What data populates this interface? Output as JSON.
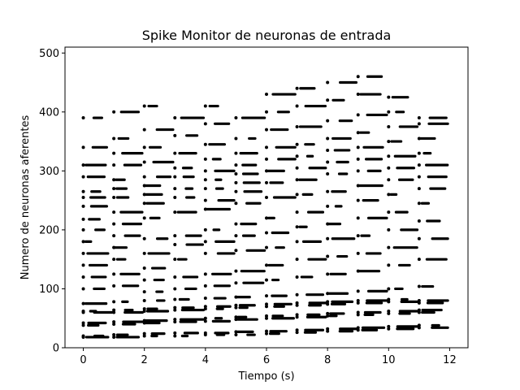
{
  "chart_data": {
    "type": "scatter",
    "title": "Spike Monitor de neuronas de entrada",
    "xlabel": "Tiempo (s)",
    "ylabel": "Numero de neuronas aferentes",
    "xlim": [
      -0.6,
      12.6
    ],
    "ylim": [
      0,
      510
    ],
    "xticks": [
      0,
      2,
      4,
      6,
      8,
      10,
      12
    ],
    "yticks": [
      0,
      100,
      200,
      300,
      400,
      500
    ],
    "grid": false,
    "marker_color": "#000000",
    "series": [
      {
        "segments": [
          {
            "t_start": 0,
            "neurons": [
              18,
              20,
              38,
              42,
              60,
              62,
              75,
              100,
              120,
              140,
              160,
              180,
              200,
              218,
              240,
              255,
              265,
              290,
              310,
              340,
              390
            ]
          },
          {
            "t_start": 1,
            "neurons": [
              18,
              22,
              40,
              44,
              60,
              64,
              78,
              105,
              125,
              150,
              170,
              190,
              210,
              230,
              255,
              270,
              285,
              310,
              330,
              355,
              400
            ]
          },
          {
            "t_start": 2,
            "neurons": [
              20,
              24,
              42,
              46,
              62,
              66,
              80,
              95,
              115,
              135,
              160,
              185,
              220,
              245,
              260,
              275,
              290,
              315,
              340,
              370,
              410
            ]
          },
          {
            "t_start": 3,
            "neurons": [
              20,
              25,
              44,
              48,
              64,
              68,
              82,
              100,
              120,
              150,
              175,
              190,
              230,
              255,
              270,
              290,
              305,
              330,
              360,
              390
            ]
          },
          {
            "t_start": 4,
            "neurons": [
              22,
              25,
              45,
              50,
              66,
              70,
              84,
              105,
              125,
              160,
              180,
              200,
              235,
              250,
              270,
              285,
              300,
              320,
              345,
              380,
              410
            ]
          },
          {
            "t_start": 5,
            "neurons": [
              22,
              27,
              48,
              52,
              68,
              72,
              86,
              110,
              130,
              165,
              190,
              210,
              245,
              265,
              280,
              295,
              310,
              330,
              355,
              390
            ]
          },
          {
            "t_start": 6,
            "neurons": [
              24,
              28,
              50,
              54,
              70,
              74,
              88,
              115,
              140,
              170,
              195,
              220,
              255,
              280,
              300,
              320,
              340,
              370,
              400,
              430
            ]
          },
          {
            "t_start": 7,
            "neurons": [
              26,
              30,
              52,
              56,
              72,
              76,
              90,
              120,
              150,
              180,
              205,
              230,
              260,
              285,
              305,
              325,
              345,
              375,
              410,
              440
            ]
          },
          {
            "t_start": 8,
            "neurons": [
              28,
              32,
              54,
              58,
              74,
              78,
              92,
              125,
              155,
              185,
              210,
              240,
              265,
              295,
              315,
              335,
              355,
              385,
              420,
              450
            ]
          },
          {
            "t_start": 9,
            "neurons": [
              30,
              34,
              56,
              60,
              76,
              80,
              96,
              130,
              160,
              190,
              220,
              250,
              275,
              300,
              320,
              340,
              365,
              395,
              430,
              460
            ]
          },
          {
            "t_start": 10,
            "neurons": [
              32,
              36,
              58,
              62,
              78,
              82,
              100,
              140,
              170,
              200,
              230,
              260,
              285,
              305,
              325,
              350,
              375,
              400,
              425
            ]
          },
          {
            "t_start": 11,
            "neurons": [
              34,
              38,
              60,
              64,
              76,
              80,
              104,
              150,
              185,
              215,
              245,
              270,
              290,
              310,
              330,
              355,
              380,
              390
            ]
          }
        ]
      }
    ]
  }
}
